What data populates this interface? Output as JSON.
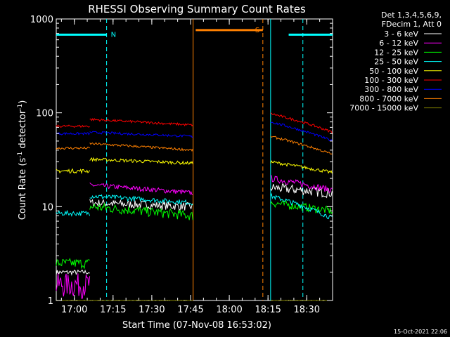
{
  "chart_data": {
    "type": "line",
    "title": "RHESSI Observing Summary Count Rates",
    "xlabel": "Start Time (07-Nov-08 16:53:02)",
    "ylabel_main": "Count Rate (s",
    "ylabel_sup1": "-1",
    "ylabel_mid": " detector",
    "ylabel_sup2": "-1",
    "ylabel_end": ")",
    "yscale": "log",
    "xlim_minutes": [
      -7,
      100
    ],
    "ylim": [
      1,
      1000
    ],
    "x_ticks": [
      {
        "label": "17:00",
        "m": 0
      },
      {
        "label": "17:15",
        "m": 15
      },
      {
        "label": "17:30",
        "m": 30
      },
      {
        "label": "17:45",
        "m": 45
      },
      {
        "label": "18:00",
        "m": 60
      },
      {
        "label": "18:15",
        "m": 75
      },
      {
        "label": "18:30",
        "m": 90
      }
    ],
    "y_ticks": [
      {
        "label": "1",
        "v": 1
      },
      {
        "label": "10",
        "v": 10
      },
      {
        "label": "100",
        "v": 100
      },
      {
        "label": "1000",
        "v": 1000
      }
    ],
    "legend_header": [
      "Det 1,3,4,5,6,9,",
      "FDecim 1, Att 0"
    ],
    "timestamp": "15-Oct-2021 22:06",
    "flags": [
      {
        "label": "N",
        "color": "#00ffff",
        "segments": [
          [
            -7,
            12.5
          ],
          [
            83,
            100
          ]
        ],
        "level": 680,
        "markers": [
          12.5,
          88.5
        ]
      },
      {
        "label": "S",
        "color": "#ff8000",
        "segments": [
          [
            47,
            73
          ]
        ],
        "level": 760,
        "markers": [
          73
        ]
      }
    ],
    "night_bounds_minutes": [
      46,
      76
    ],
    "series": [
      {
        "name": "3 - 6 keV",
        "color": "#ffffff",
        "segments": [
          [
            -7,
            6,
            2.0,
            2.0,
            6
          ],
          [
            6,
            46,
            11,
            10,
            10
          ],
          [
            76,
            100,
            16,
            14,
            12
          ]
        ]
      },
      {
        "name": "6 - 12 keV",
        "color": "#ff00ff",
        "segments": [
          [
            -7,
            6,
            1.5,
            1.5,
            30
          ],
          [
            6,
            46,
            17,
            14,
            6
          ],
          [
            76,
            100,
            20,
            15,
            8
          ]
        ]
      },
      {
        "name": "12 - 25 keV",
        "color": "#00ff00",
        "segments": [
          [
            -7,
            6,
            2.5,
            2.5,
            12
          ],
          [
            6,
            46,
            10,
            8,
            12
          ],
          [
            76,
            100,
            11,
            9,
            10
          ]
        ]
      },
      {
        "name": "25 - 50 keV",
        "color": "#00ffff",
        "segments": [
          [
            -7,
            6,
            8.5,
            8.5,
            6
          ],
          [
            6,
            46,
            13,
            11,
            6
          ],
          [
            76,
            100,
            13,
            7.5,
            6
          ]
        ]
      },
      {
        "name": "50 - 100 keV",
        "color": "#ffff00",
        "segments": [
          [
            -7,
            6,
            24,
            24,
            5
          ],
          [
            6,
            46,
            32,
            29,
            4
          ],
          [
            76,
            100,
            30,
            23,
            4
          ]
        ]
      },
      {
        "name": "100 - 300 keV",
        "color": "#ff0000",
        "segments": [
          [
            -7,
            6,
            72,
            72,
            3
          ],
          [
            6,
            46,
            85,
            74,
            3
          ],
          [
            76,
            100,
            98,
            62,
            3
          ]
        ]
      },
      {
        "name": "300 - 800 keV",
        "color": "#0000ff",
        "segments": [
          [
            -7,
            6,
            60,
            60,
            3
          ],
          [
            6,
            46,
            62,
            56,
            3
          ],
          [
            76,
            100,
            80,
            50,
            3
          ]
        ]
      },
      {
        "name": "800 - 7000 keV",
        "color": "#ff8000",
        "segments": [
          [
            -7,
            6,
            42,
            42,
            3
          ],
          [
            6,
            46,
            47,
            40,
            3
          ],
          [
            76,
            100,
            56,
            36,
            3
          ]
        ]
      },
      {
        "name": "7000 - 15000 keV",
        "color": "#808000",
        "segments": [
          [
            -7,
            6,
            1.0,
            1.0,
            1
          ],
          [
            6,
            46,
            1.0,
            1.0,
            1
          ],
          [
            76,
            100,
            1.0,
            1.0,
            1
          ]
        ]
      }
    ]
  }
}
